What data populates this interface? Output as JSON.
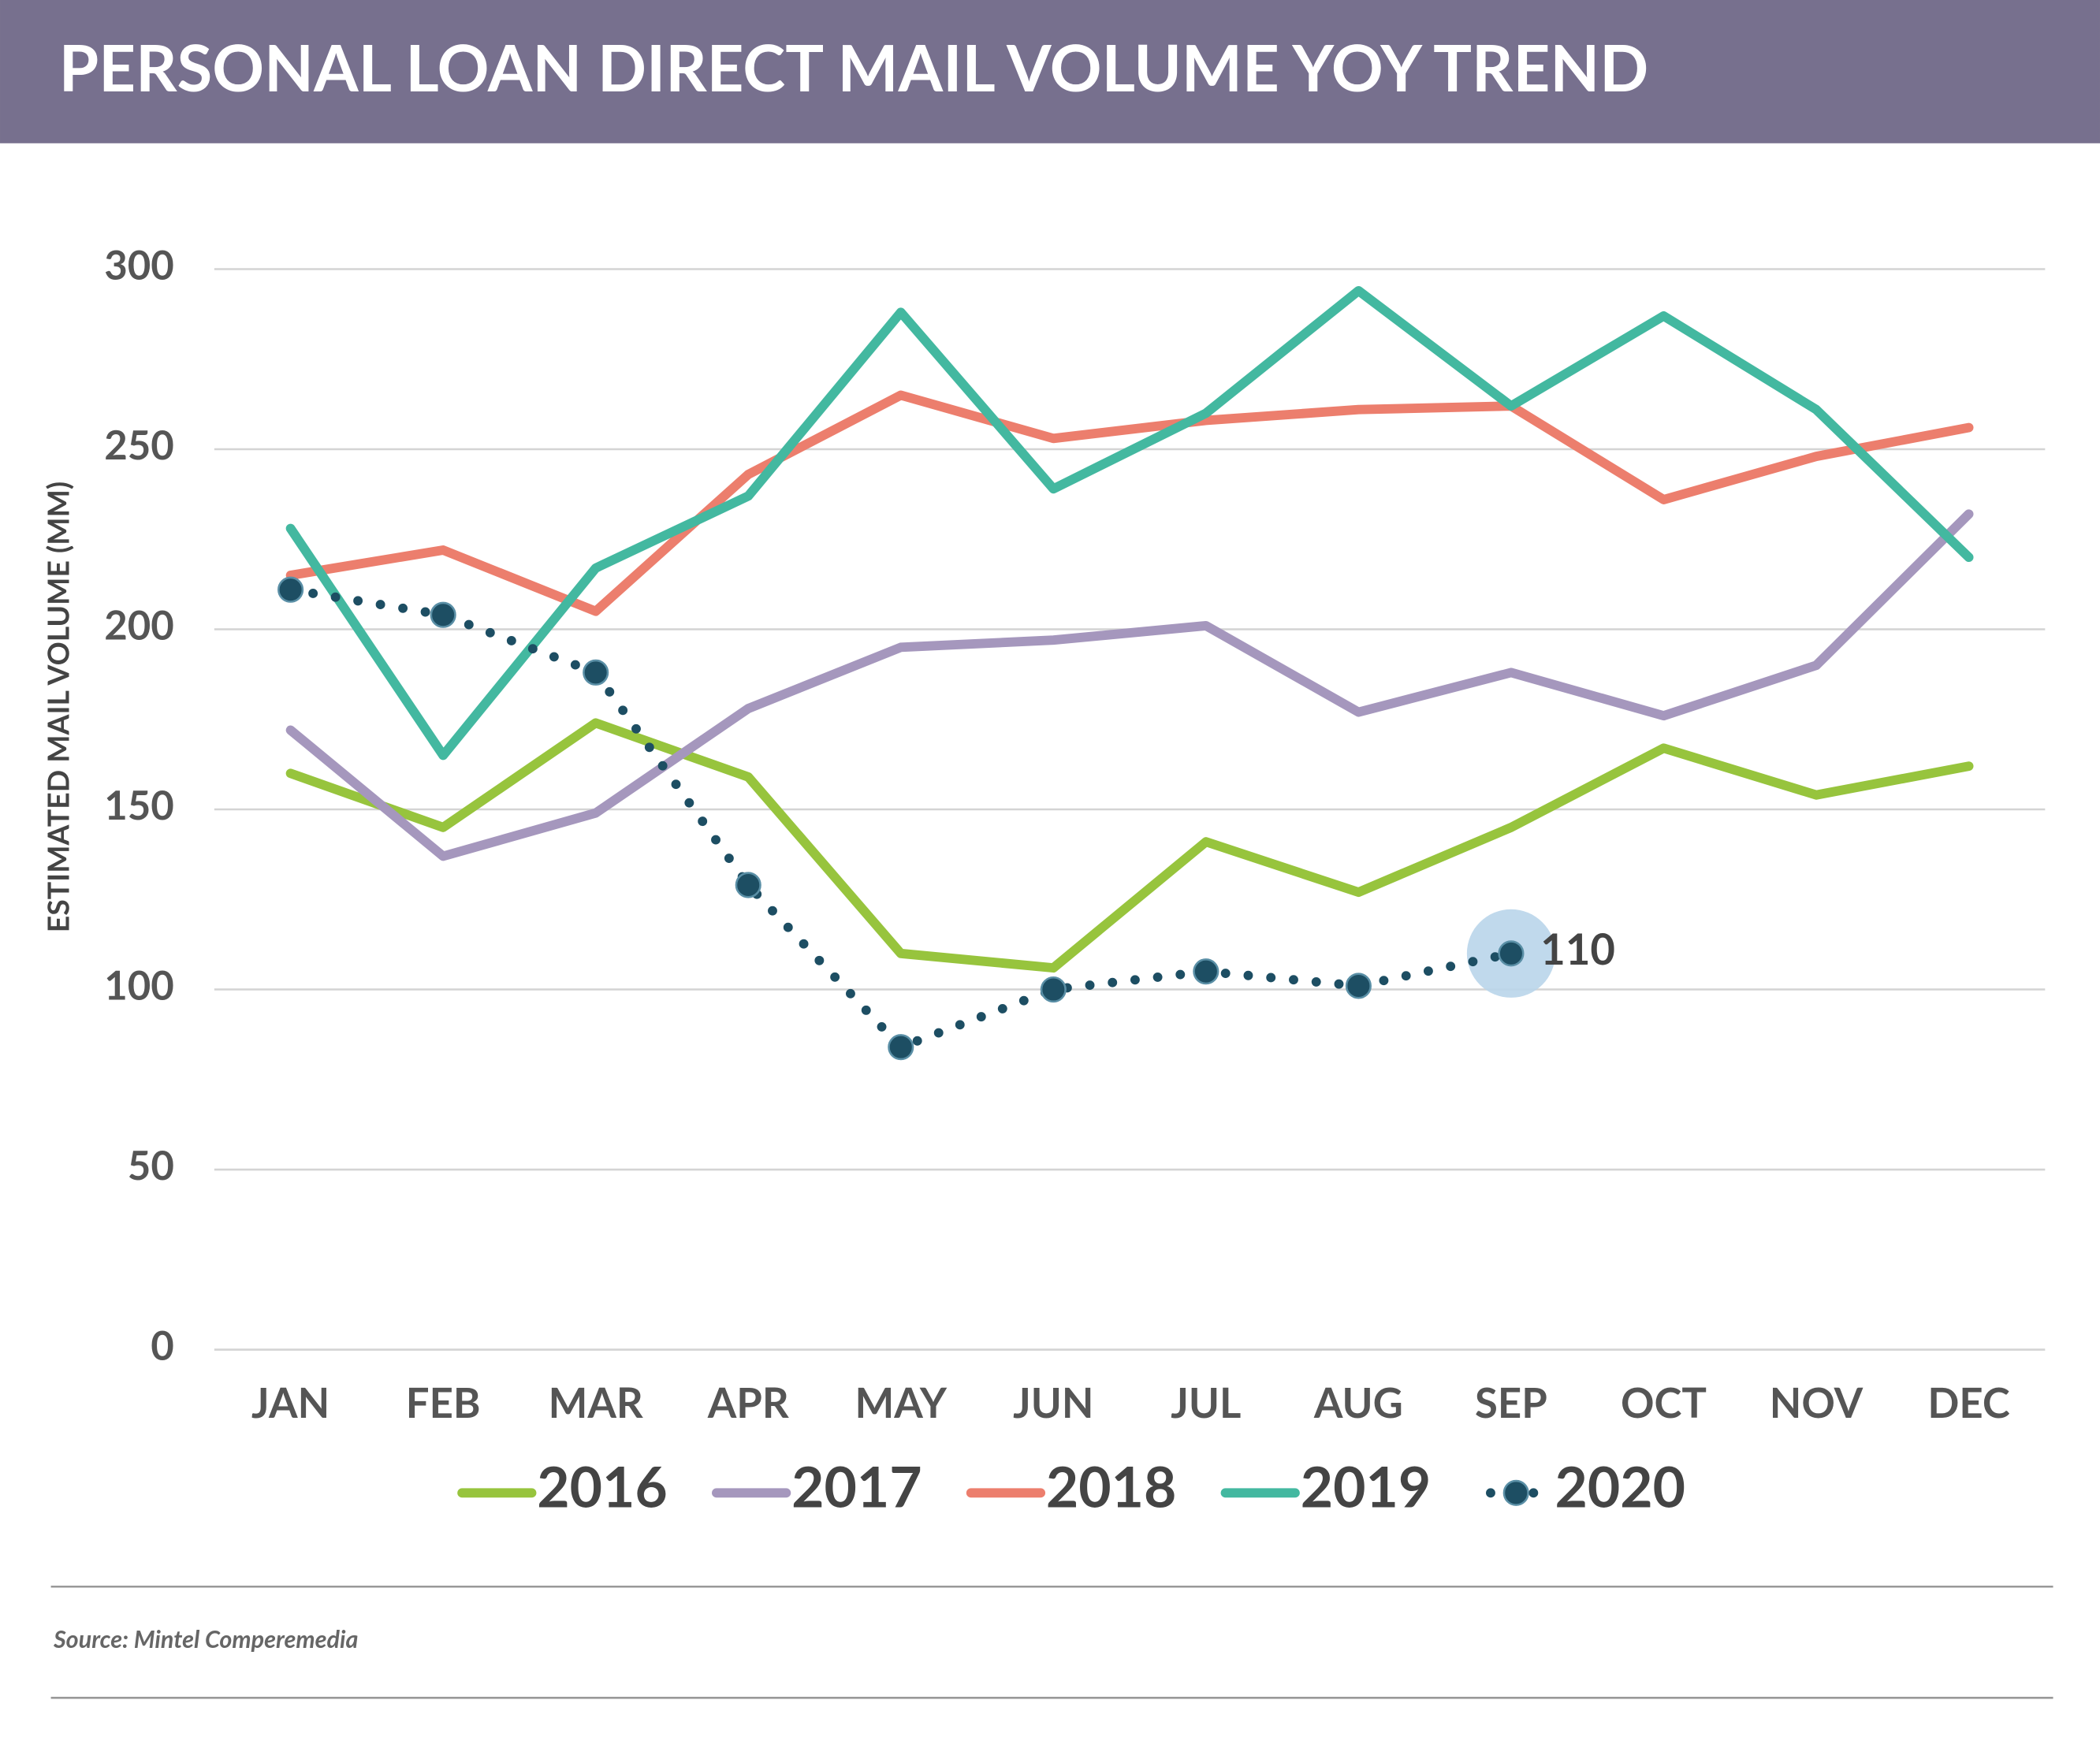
{
  "chart_data": {
    "type": "line",
    "title": "PERSONAL LOAN DIRECT MAIL VOLUME YOY TREND",
    "y_label": "ESTIMATED MAIL VOLUME (MM)",
    "source": "Source: Mintel Comperemedia",
    "categories": [
      "JAN",
      "FEB",
      "MAR",
      "APR",
      "MAY",
      "JUN",
      "JUL",
      "AUG",
      "SEP",
      "OCT",
      "NOV",
      "DEC"
    ],
    "series": [
      {
        "name": "2016",
        "color": "#97c43d",
        "values": [
          160,
          145,
          174,
          159,
          110,
          106,
          141,
          127,
          145,
          167,
          154,
          162
        ]
      },
      {
        "name": "2017",
        "color": "#a597bd",
        "values": [
          172,
          137,
          149,
          178,
          195,
          197,
          201,
          177,
          188,
          176,
          190,
          232
        ]
      },
      {
        "name": "2018",
        "color": "#ec7e6d",
        "values": [
          215,
          222,
          205,
          243,
          265,
          253,
          258,
          261,
          262,
          236,
          248,
          256
        ]
      },
      {
        "name": "2019",
        "color": "#43b8a0",
        "values": [
          228,
          165,
          217,
          237,
          288,
          239,
          260,
          294,
          262,
          287,
          261,
          220
        ]
      },
      {
        "name": "2020",
        "color": "#1d4e63",
        "style": "dotted-markers",
        "values": [
          211,
          204,
          188,
          129,
          84,
          100,
          105,
          101,
          110,
          null,
          null,
          null
        ]
      }
    ],
    "annotation_point": {
      "series": 4,
      "index": 8
    },
    "ylim": [
      0,
      300
    ],
    "yticks": [
      0,
      50,
      100,
      150,
      200,
      250,
      300
    ],
    "grid": true,
    "legend": "bottom"
  }
}
